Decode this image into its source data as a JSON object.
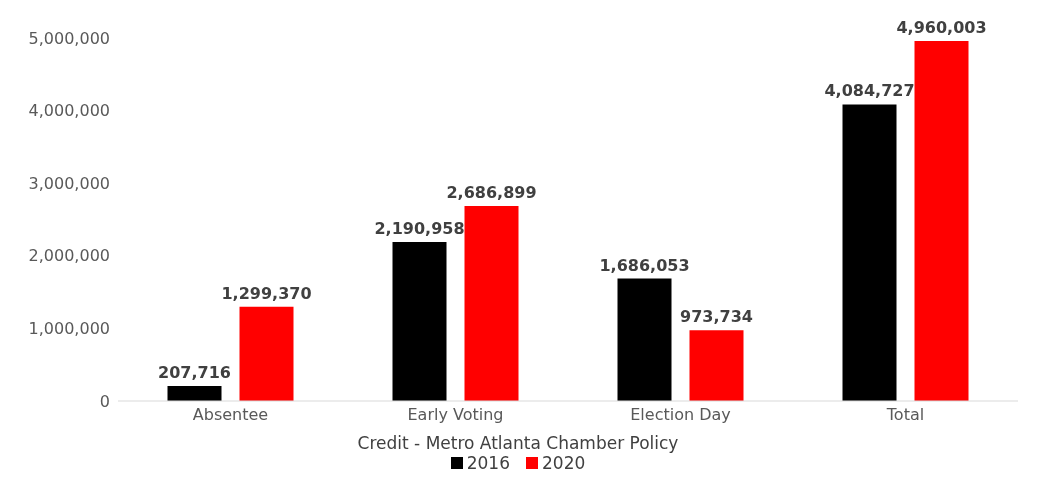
{
  "chart_data": {
    "type": "bar",
    "categories": [
      "Absentee",
      "Early Voting",
      "Election Day",
      "Total"
    ],
    "series": [
      {
        "name": "2016",
        "color": "#000000",
        "values": [
          207716,
          2190958,
          1686053,
          4084727
        ],
        "value_labels": [
          "207,716",
          "2,190,958",
          "1,686,053",
          "4,084,727"
        ]
      },
      {
        "name": "2020",
        "color": "#ff0000",
        "values": [
          1299370,
          2686899,
          973734,
          4960003
        ],
        "value_labels": [
          "1,299,370",
          "2,686,899",
          "973,734",
          "4,960,003"
        ]
      }
    ],
    "ylim": [
      0,
      5000000
    ],
    "yticks": [
      0,
      {
        "value": 1000000,
        "label": "1,000,000"
      },
      {
        "value": 2000000,
        "label": "2,000,000"
      },
      {
        "value": 3000000,
        "label": "3,000,000"
      },
      {
        "value": 4000000,
        "label": "4,000,000"
      },
      {
        "value": 5000000,
        "label": "5,000,000"
      }
    ],
    "grid": false,
    "legend": "bottom",
    "annotations": [
      "Credit - Metro Atlanta Chamber Policy"
    ]
  }
}
